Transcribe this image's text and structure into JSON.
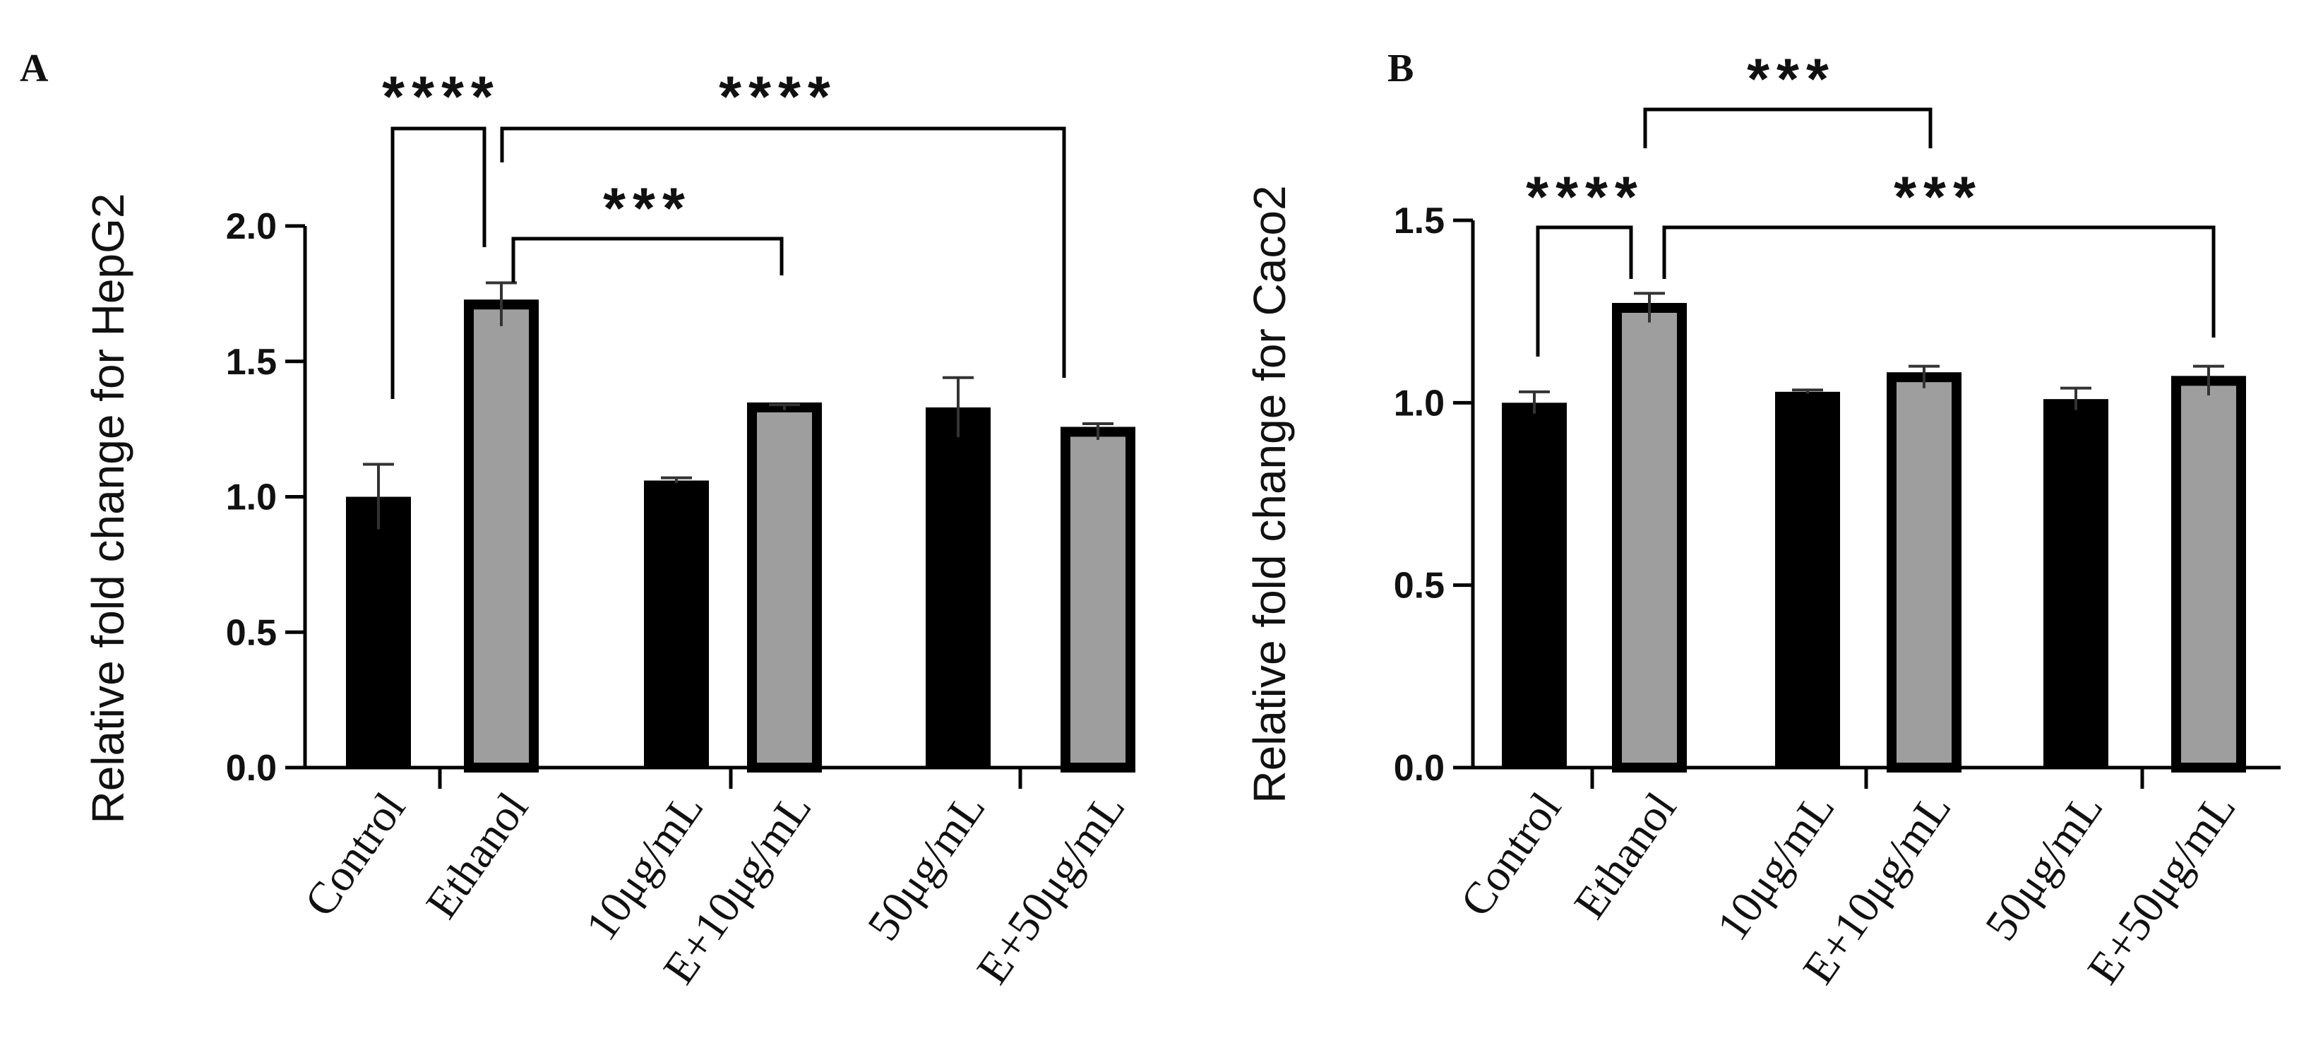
{
  "chart_data": [
    {
      "type": "bar",
      "panel": "A",
      "ylabel": "Relative fold change for HepG2",
      "ylim": [
        0,
        2.0
      ],
      "yticks": [
        "0.0",
        "0.5",
        "1.0",
        "1.5",
        "2.0"
      ],
      "categories": [
        "Control",
        "Ethanol",
        "10μg/mL",
        "E+10μg/mL",
        "50μg/mL",
        "E+50μg/mL"
      ],
      "values": [
        1.0,
        1.71,
        1.06,
        1.33,
        1.33,
        1.24
      ],
      "errors": [
        0.12,
        0.08,
        0.01,
        0.01,
        0.11,
        0.03
      ],
      "bar_colors": [
        "#000000",
        "#9e9e9e",
        "#000000",
        "#9e9e9e",
        "#000000",
        "#9e9e9e"
      ],
      "significance": [
        {
          "from": 0,
          "to": 1,
          "label": "****"
        },
        {
          "from": 1,
          "to": 5,
          "label": "****"
        },
        {
          "from": 1,
          "to": 3,
          "label": "***"
        }
      ]
    },
    {
      "type": "bar",
      "panel": "B",
      "ylabel": "Relative fold change for Caco2",
      "ylim": [
        0,
        1.5
      ],
      "yticks": [
        "0.0",
        "0.5",
        "1.0",
        "1.5"
      ],
      "categories": [
        "Control",
        "Ethanol",
        "10μg/mL",
        "E+10μg/mL",
        "50μg/mL",
        "E+50μg/mL"
      ],
      "values": [
        1.0,
        1.26,
        1.03,
        1.07,
        1.01,
        1.06
      ],
      "errors": [
        0.03,
        0.04,
        0.005,
        0.03,
        0.03,
        0.04
      ],
      "bar_colors": [
        "#000000",
        "#9e9e9e",
        "#000000",
        "#9e9e9e",
        "#000000",
        "#9e9e9e"
      ],
      "significance": [
        {
          "from": 0,
          "to": 1,
          "label": "****"
        },
        {
          "from": 1,
          "to": 3,
          "label": "***"
        },
        {
          "from": 1,
          "to": 5,
          "label": "***"
        }
      ]
    }
  ]
}
